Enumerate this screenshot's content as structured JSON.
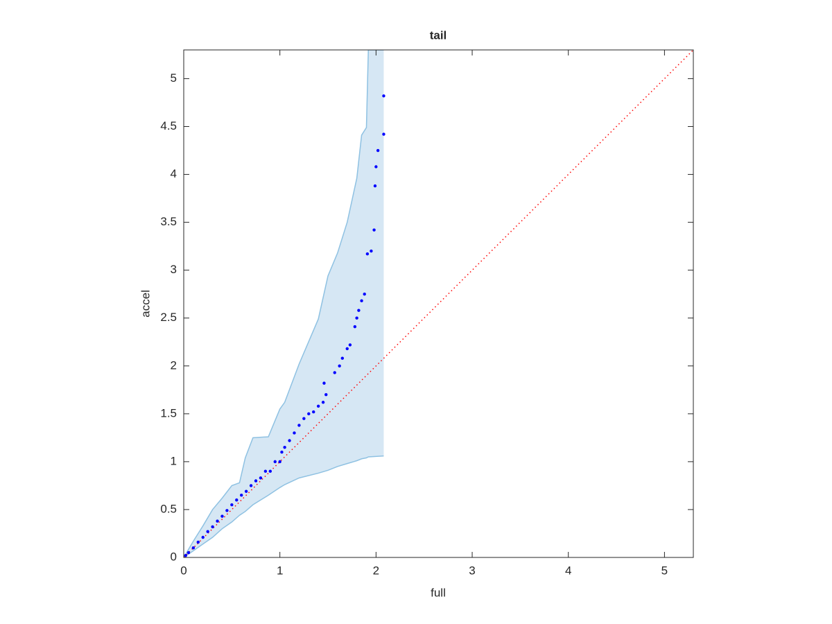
{
  "chart_data": {
    "type": "scatter",
    "title": "tail",
    "x_label": "full",
    "y_label": "accel",
    "xlim": [
      0,
      5.3
    ],
    "ylim": [
      0,
      5.3
    ],
    "xticks": [
      0,
      1,
      2,
      3,
      4,
      5
    ],
    "yticks": [
      0,
      0.5,
      1,
      1.5,
      2,
      2.5,
      3,
      3.5,
      4,
      4.5,
      5
    ],
    "points": {
      "color": "#0000ff",
      "x": [
        0.02,
        0.05,
        0.1,
        0.15,
        0.2,
        0.25,
        0.3,
        0.35,
        0.4,
        0.45,
        0.5,
        0.55,
        0.6,
        0.65,
        0.7,
        0.75,
        0.8,
        0.85,
        0.9,
        0.95,
        1.0,
        1.02,
        1.05,
        1.1,
        1.15,
        1.2,
        1.25,
        1.3,
        1.35,
        1.4,
        1.45,
        1.48,
        1.46,
        1.57,
        1.62,
        1.65,
        1.7,
        1.73,
        1.78,
        1.8,
        1.82,
        1.85,
        1.88,
        1.91,
        1.95,
        1.98,
        1.99,
        2.0,
        2.02,
        2.08,
        2.08
      ],
      "y": [
        0.02,
        0.05,
        0.1,
        0.16,
        0.21,
        0.27,
        0.32,
        0.38,
        0.43,
        0.49,
        0.55,
        0.6,
        0.65,
        0.69,
        0.75,
        0.8,
        0.83,
        0.9,
        0.9,
        1.0,
        1.0,
        1.1,
        1.15,
        1.22,
        1.3,
        1.38,
        1.45,
        1.5,
        1.52,
        1.58,
        1.62,
        1.7,
        1.82,
        1.93,
        2.0,
        2.08,
        2.18,
        2.22,
        2.41,
        2.5,
        2.58,
        2.68,
        2.75,
        3.17,
        3.2,
        3.42,
        3.88,
        4.08,
        4.25,
        4.42,
        4.82
      ]
    },
    "band": {
      "color": "#d6e7f4",
      "edge_color": "#8ec1e2",
      "x": [
        0,
        0.1,
        0.2,
        0.3,
        0.4,
        0.5,
        0.58,
        0.64,
        0.72,
        0.88,
        1.0,
        1.05,
        1.2,
        1.4,
        1.5,
        1.6,
        1.7,
        1.8,
        1.85,
        1.9,
        1.92,
        2.08
      ],
      "upper": [
        0,
        0.17,
        0.33,
        0.5,
        0.62,
        0.75,
        0.78,
        1.04,
        1.25,
        1.26,
        1.55,
        1.62,
        2.02,
        2.49,
        2.94,
        3.18,
        3.5,
        3.96,
        4.41,
        4.49,
        5.3,
        5.3
      ],
      "lower": [
        0,
        0.07,
        0.14,
        0.21,
        0.3,
        0.37,
        0.44,
        0.48,
        0.55,
        0.65,
        0.73,
        0.76,
        0.83,
        0.88,
        0.91,
        0.95,
        0.98,
        1.01,
        1.03,
        1.04,
        1.05,
        1.06
      ]
    },
    "reference": {
      "color": "#ff0000",
      "x": [
        0,
        5.3
      ],
      "y": [
        0,
        5.3
      ]
    }
  }
}
